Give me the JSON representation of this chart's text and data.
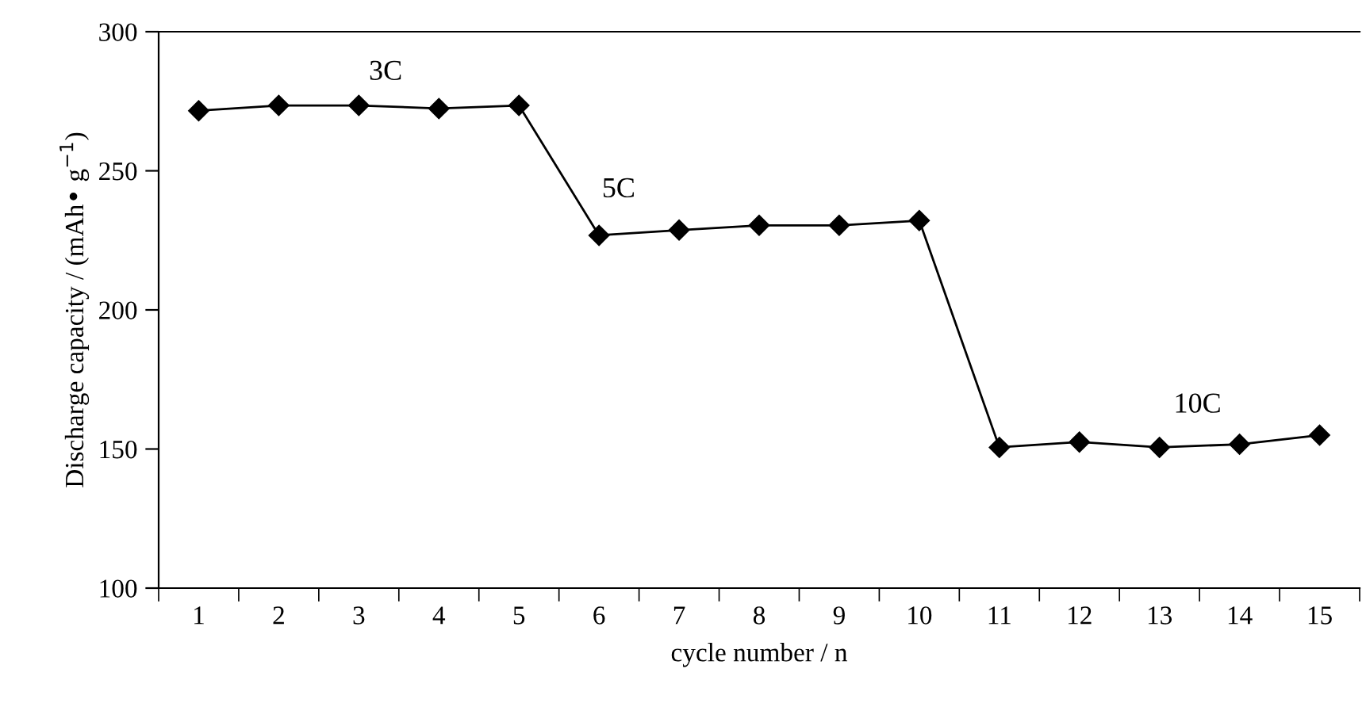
{
  "chart_data": {
    "type": "line",
    "xlabel": "cycle number / n",
    "ylabel": "Discharge capacity / (mAh• g$^{−1}$)",
    "categories": [
      "1",
      "2",
      "3",
      "4",
      "5",
      "6",
      "7",
      "8",
      "9",
      "10",
      "11",
      "12",
      "13",
      "14",
      "15"
    ],
    "series": [
      {
        "color": "#000000",
        "values": [
          271.6,
          273.5,
          273.5,
          272.4,
          273.5,
          226.8,
          228.7,
          230.4,
          230.4,
          232.1,
          150.6,
          152.5,
          150.6,
          151.7,
          155.0
        ]
      }
    ],
    "ylim": [
      100,
      300
    ],
    "yticks": [
      100,
      150,
      200,
      250,
      300
    ],
    "grid": false,
    "legend": false,
    "marker": "diamond",
    "line_style": "solid",
    "annotations": [
      "3C",
      "5C",
      "10C"
    ]
  }
}
